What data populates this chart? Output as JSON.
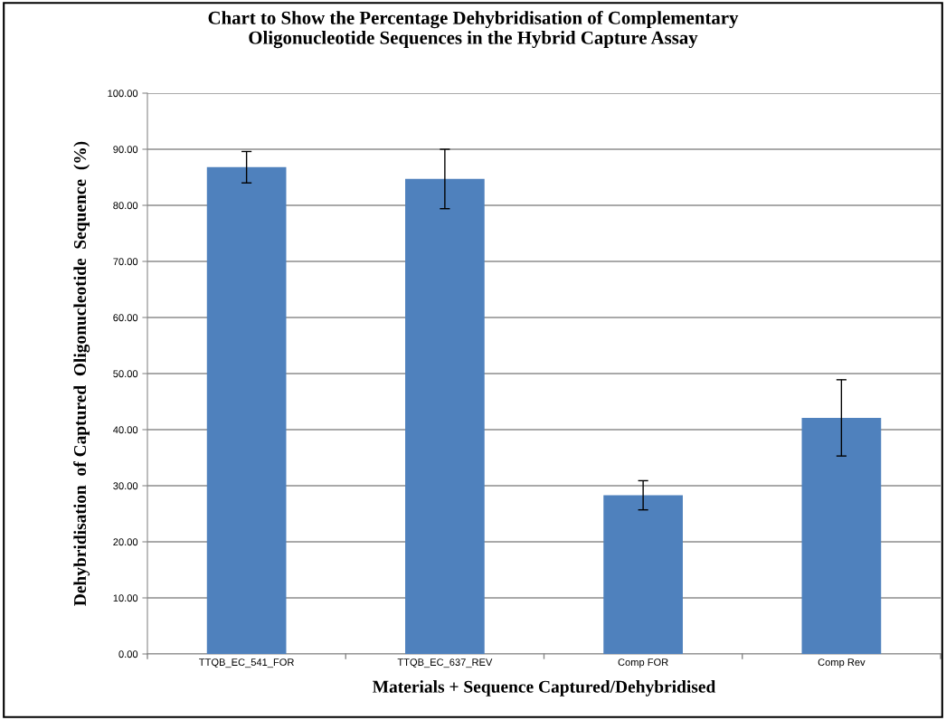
{
  "chart_data": {
    "type": "bar",
    "title": "Chart to Show the Percentage Dehybridisation of Complementary\nOligonucleotide Sequences in the Hybrid Capture Assay",
    "xlabel": "Materials + Sequence Captured/Dehybridised",
    "ylabel": "Dehybridisation  of Captured  Oligonucleotide  Sequence  (%)",
    "categories": [
      "TTQB_EC_541_FOR",
      "TTQB_EC_637_REV",
      "Comp FOR",
      "Comp Rev"
    ],
    "values": [
      86.8,
      84.7,
      28.3,
      42.1
    ],
    "errors": [
      2.8,
      5.3,
      2.6,
      6.8
    ],
    "color": "#4f81bd",
    "ylim": [
      0,
      100
    ],
    "yticks": [
      {
        "value": 0,
        "label": "0.00"
      },
      {
        "value": 10,
        "label": "10.00"
      },
      {
        "value": 20,
        "label": "20.00"
      },
      {
        "value": 30,
        "label": "30.00"
      },
      {
        "value": 40,
        "label": "40.00"
      },
      {
        "value": 50,
        "label": "50.00"
      },
      {
        "value": 60,
        "label": "60.00"
      },
      {
        "value": 70,
        "label": "70.00"
      },
      {
        "value": 80,
        "label": "80.00"
      },
      {
        "value": 90,
        "label": "90.00"
      },
      {
        "value": 100,
        "label": "100.00"
      }
    ],
    "grid": "y"
  }
}
